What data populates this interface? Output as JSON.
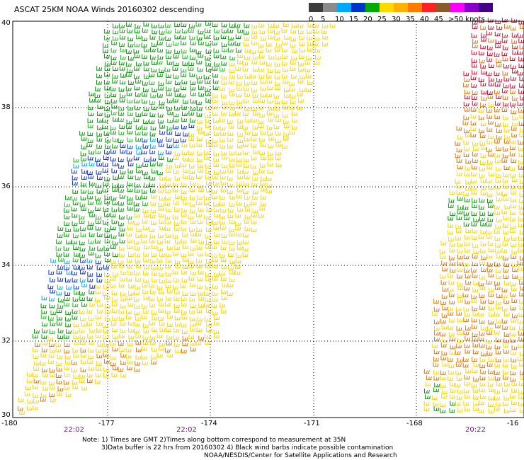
{
  "title": "ASCAT 25KM NOAA Winds 20160302 descending",
  "legend": {
    "ticks": [
      "0",
      "5",
      "10",
      "15",
      "20",
      "25",
      "30",
      "35",
      "40",
      "45",
      ">50 knots"
    ],
    "colors": [
      "#3c3c3c",
      "#8a8a8a",
      "#00a6ff",
      "#0033cc",
      "#00aa00",
      "#ffd800",
      "#ffb000",
      "#ff7a00",
      "#ff2222",
      "#8b5a2b",
      "#ff00ff",
      "#8800cc",
      "#440088"
    ]
  },
  "axes": {
    "lat_labels": [
      "40",
      "38",
      "36",
      "34",
      "32",
      "30"
    ],
    "lon_labels": [
      "-180",
      "-177",
      "-174",
      "-171",
      "-168",
      "-16"
    ]
  },
  "times": [
    "22:02",
    "22:02",
    "20:22"
  ],
  "notes": [
    "Note: 1) Times are GMT 2)Times along bottom correspond to measurement at 35N",
    "3)Data buffer is 22 hrs from 20160302 4) Black wind barbs indicate possible contamination",
    "NOAA/NESDIS/Center for Satellite Applications and Research"
  ],
  "colors": {
    "green": "#0a9a0a",
    "blue": "#1030d0",
    "yellow": "#ffd400",
    "orange": "#e07a10",
    "red": "#d01030",
    "lightgreen": "#20c020",
    "cyan": "#00aaff"
  }
}
